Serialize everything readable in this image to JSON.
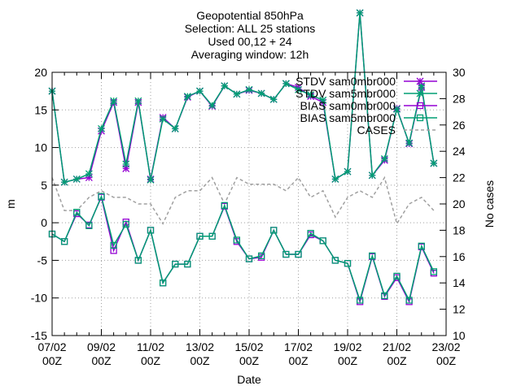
{
  "chart_data": {
    "type": "line",
    "title_lines": [
      "Geopotential 850hPa",
      "Selection: ALL      25 stations",
      "Used 00,12 + 24",
      "Averaging window: 12h"
    ],
    "xlabel": "Date",
    "ylabel": "m",
    "y2label": "No cases",
    "x_ticks": [
      {
        "d": 0,
        "l1": "07/02",
        "l2": "00Z"
      },
      {
        "d": 2,
        "l1": "09/02",
        "l2": "00Z"
      },
      {
        "d": 4,
        "l1": "11/02",
        "l2": "00Z"
      },
      {
        "d": 6,
        "l1": "13/02",
        "l2": "00Z"
      },
      {
        "d": 8,
        "l1": "15/02",
        "l2": "00Z"
      },
      {
        "d": 10,
        "l1": "17/02",
        "l2": "00Z"
      },
      {
        "d": 12,
        "l1": "19/02",
        "l2": "00Z"
      },
      {
        "d": 14,
        "l1": "21/02",
        "l2": "00Z"
      },
      {
        "d": 16,
        "l1": "23/02",
        "l2": "00Z"
      }
    ],
    "xlim": [
      0,
      16
    ],
    "ylim": [
      -15,
      20
    ],
    "y_ticks": [
      -15,
      -10,
      -5,
      0,
      5,
      10,
      15,
      20
    ],
    "y2lim": [
      10,
      30
    ],
    "y2_ticks": [
      10,
      12,
      14,
      16,
      18,
      20,
      22,
      24,
      26,
      28,
      30
    ],
    "grid": true,
    "legend_position": "top-right",
    "x": [
      0,
      0.5,
      1,
      1.5,
      2,
      2.5,
      3,
      3.5,
      4,
      4.5,
      5,
      5.5,
      6,
      6.5,
      7,
      7.5,
      8,
      8.5,
      9,
      9.5,
      10,
      10.5,
      11,
      11.5,
      12,
      12.5,
      13,
      13.5,
      14,
      14.5,
      15,
      15.5
    ],
    "series": [
      {
        "name": "STDV sam0mbr000",
        "color": "#9400d3",
        "marker": "star",
        "axis": "y",
        "values": [
          17.5,
          5.4,
          5.8,
          6.0,
          12.2,
          16.0,
          7.2,
          16.0,
          5.8,
          14.0,
          12.5,
          16.7,
          17.5,
          15.5,
          18.2,
          17.1,
          17.6,
          17.2,
          16.4,
          18.5,
          18.0,
          16.8,
          16.0,
          5.8,
          6.8,
          27.9,
          6.3,
          8.3,
          15.2,
          10.5,
          18.0,
          7.9
        ]
      },
      {
        "name": "STDV sam5mbr000",
        "color": "#009e73",
        "marker": "star",
        "axis": "y",
        "values": [
          17.5,
          5.4,
          5.8,
          6.5,
          12.5,
          16.2,
          7.8,
          16.2,
          5.7,
          13.8,
          12.5,
          16.8,
          17.5,
          15.6,
          18.2,
          17.1,
          17.7,
          17.2,
          16.4,
          18.5,
          17.7,
          17.0,
          16.3,
          5.8,
          6.8,
          27.9,
          6.3,
          8.5,
          15.1,
          10.6,
          18.2,
          7.9
        ]
      },
      {
        "name": "BIAS sam0mbr000",
        "color": "#9400d3",
        "marker": "square",
        "axis": "y",
        "values": [
          -1.5,
          -2.5,
          1.2,
          -0.3,
          3.4,
          -3.7,
          0.1,
          -5.0,
          -1.0,
          -8.0,
          -5.5,
          -5.5,
          -1.8,
          -1.8,
          2.2,
          -2.5,
          -4.8,
          -4.6,
          -1.0,
          -4.2,
          -4.2,
          -1.6,
          -2.4,
          -5.0,
          -5.4,
          -10.5,
          -4.5,
          -9.8,
          -7.3,
          -10.5,
          -3.2,
          -6.7
        ]
      },
      {
        "name": "BIAS sam5mbr000",
        "color": "#009e73",
        "marker": "square",
        "axis": "y",
        "values": [
          -1.5,
          -2.5,
          1.4,
          -0.4,
          3.5,
          -3.0,
          -0.2,
          -5.0,
          -1.0,
          -8.0,
          -5.5,
          -5.5,
          -1.8,
          -1.8,
          2.3,
          -2.3,
          -4.8,
          -4.4,
          -1.0,
          -4.2,
          -4.2,
          -1.4,
          -2.4,
          -5.0,
          -5.4,
          -10.3,
          -4.4,
          -9.7,
          -7.1,
          -10.3,
          -3.1,
          -6.5
        ]
      },
      {
        "name": "CASES",
        "color": "#a0a0a0",
        "marker": "none",
        "dashed": true,
        "axis": "y2",
        "values": [
          22,
          19.5,
          19.5,
          20.5,
          21,
          20.5,
          20.5,
          20,
          20,
          18.5,
          20.5,
          21,
          21,
          22,
          20,
          22,
          21.5,
          21.5,
          21.5,
          21,
          22,
          20.5,
          21,
          19,
          20.5,
          21,
          20.5,
          22,
          18.5,
          20,
          20.5,
          19.5
        ]
      }
    ]
  }
}
